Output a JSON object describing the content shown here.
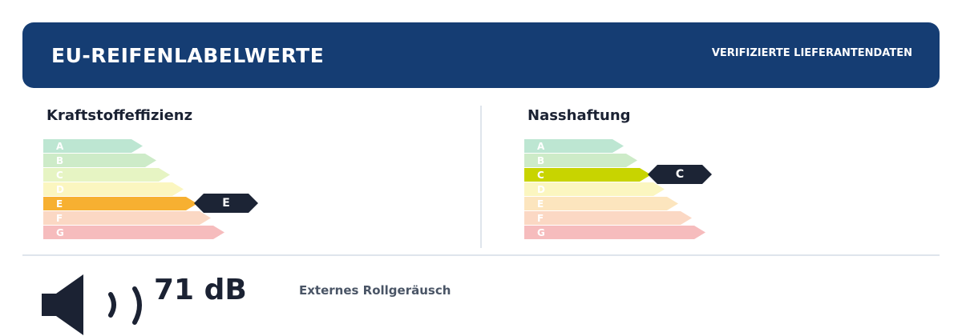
{
  "header": {
    "title": "EU-REIFENLABELWERTE",
    "note": "VERIFIZIERTE LIEFERANTENDATEN",
    "background": "#153d73"
  },
  "fuel_efficiency": {
    "title": "Kraftstoffeffizienz",
    "classes": [
      "A",
      "B",
      "C",
      "D",
      "E",
      "F",
      "G"
    ],
    "selected": "E",
    "selected_color": "#f7b031"
  },
  "wet_grip": {
    "title": "Nasshaftung",
    "classes": [
      "A",
      "B",
      "C",
      "D",
      "E",
      "F",
      "G"
    ],
    "selected": "C",
    "selected_color": "#c8d400"
  },
  "scale_colors": [
    "#bde6d2",
    "#cdebc8",
    "#e6f4c3",
    "#fbf6c0",
    "#fce5be",
    "#fbd8c4",
    "#f6bcbd"
  ],
  "noise": {
    "value": "71 dB",
    "label": "Externes Rollgeräusch",
    "icon": "speaker-icon"
  }
}
